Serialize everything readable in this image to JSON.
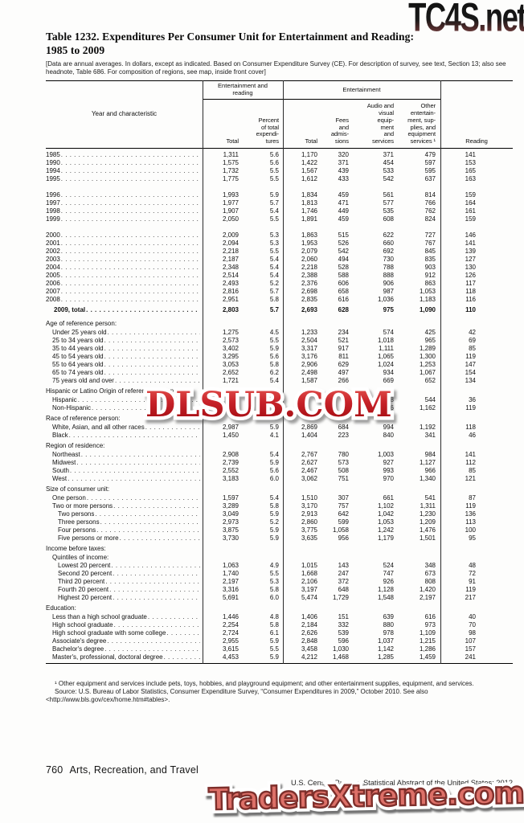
{
  "watermarks": {
    "top": "TC4S.net",
    "middle": "DLSUB.COM",
    "bottom": "TradersXtreme.com"
  },
  "title": {
    "line1": "Table 1232. Expenditures Per Consumer Unit for Entertainment and Reading:",
    "line2": "1985 to 2009"
  },
  "headnote": "[Data are annual averages. In dollars, except as indicated. Based on Consumer Expenditure Survey (CE). For description of survey, see text, Section 13; also see headnote, Table 686. For composition of regions, see map, inside front cover]",
  "table": {
    "header": {
      "stub": "Year and characteristic",
      "group1": "Entertainment and\nreading",
      "group2": "Entertainment",
      "cols": [
        "Total",
        "Percent\nof total\nexpendi-\ntures",
        "Total",
        "Fees\nand\nadmis-\nsions",
        "Audio and\nvisual\nequip-\nment\nand\nservices",
        "Other\nentertain-\nment, sup-\nplies, and\nequipment\nservices ¹",
        "Reading"
      ]
    },
    "rows": [
      {
        "t": "year",
        "label": "1985",
        "v": [
          "1,311",
          "5.6",
          "1,170",
          "320",
          "371",
          "479",
          "141"
        ]
      },
      {
        "t": "year",
        "label": "1990",
        "v": [
          "1,575",
          "5.6",
          "1,422",
          "371",
          "454",
          "597",
          "153"
        ]
      },
      {
        "t": "year",
        "label": "1994",
        "v": [
          "1,732",
          "5.5",
          "1,567",
          "439",
          "533",
          "595",
          "165"
        ]
      },
      {
        "t": "year",
        "label": "1995",
        "v": [
          "1,775",
          "5.5",
          "1,612",
          "433",
          "542",
          "637",
          "163"
        ]
      },
      {
        "t": "gap"
      },
      {
        "t": "year",
        "label": "1996",
        "v": [
          "1,993",
          "5.9",
          "1,834",
          "459",
          "561",
          "814",
          "159"
        ]
      },
      {
        "t": "year",
        "label": "1997",
        "v": [
          "1,977",
          "5.7",
          "1,813",
          "471",
          "577",
          "766",
          "164"
        ]
      },
      {
        "t": "year",
        "label": "1998",
        "v": [
          "1,907",
          "5.4",
          "1,746",
          "449",
          "535",
          "762",
          "161"
        ]
      },
      {
        "t": "year",
        "label": "1999",
        "v": [
          "2,050",
          "5.5",
          "1,891",
          "459",
          "608",
          "824",
          "159"
        ]
      },
      {
        "t": "gap"
      },
      {
        "t": "year",
        "label": "2000",
        "v": [
          "2,009",
          "5.3",
          "1,863",
          "515",
          "622",
          "727",
          "146"
        ]
      },
      {
        "t": "year",
        "label": "2001",
        "v": [
          "2,094",
          "5.3",
          "1,953",
          "526",
          "660",
          "767",
          "141"
        ]
      },
      {
        "t": "year",
        "label": "2002",
        "v": [
          "2,218",
          "5.5",
          "2,079",
          "542",
          "692",
          "845",
          "139"
        ]
      },
      {
        "t": "year",
        "label": "2003",
        "v": [
          "2,187",
          "5.4",
          "2,060",
          "494",
          "730",
          "835",
          "127"
        ]
      },
      {
        "t": "year",
        "label": "2004",
        "v": [
          "2,348",
          "5.4",
          "2,218",
          "528",
          "788",
          "903",
          "130"
        ]
      },
      {
        "t": "year",
        "label": "2005",
        "v": [
          "2,514",
          "5.4",
          "2,388",
          "588",
          "888",
          "912",
          "126"
        ]
      },
      {
        "t": "year",
        "label": "2006",
        "v": [
          "2,493",
          "5.2",
          "2,376",
          "606",
          "906",
          "863",
          "117"
        ]
      },
      {
        "t": "year",
        "label": "2007",
        "v": [
          "2,816",
          "5.7",
          "2,698",
          "658",
          "987",
          "1,053",
          "118"
        ]
      },
      {
        "t": "year",
        "label": "2008",
        "v": [
          "2,951",
          "5.8",
          "2,835",
          "616",
          "1,036",
          "1,183",
          "116"
        ]
      },
      {
        "t": "total",
        "label": "2009, total",
        "v": [
          "2,803",
          "5.7",
          "2,693",
          "628",
          "975",
          "1,090",
          "110"
        ]
      },
      {
        "t": "sechead",
        "label": "Age of reference person:"
      },
      {
        "t": "item",
        "label": "Under 25 years old",
        "v": [
          "1,275",
          "4.5",
          "1,233",
          "234",
          "574",
          "425",
          "42"
        ]
      },
      {
        "t": "item",
        "label": "25 to 34 years old",
        "v": [
          "2,573",
          "5.5",
          "2,504",
          "521",
          "1,018",
          "965",
          "69"
        ]
      },
      {
        "t": "item",
        "label": "35 to 44 years old",
        "v": [
          "3,402",
          "5.9",
          "3,317",
          "917",
          "1,111",
          "1,289",
          "85"
        ]
      },
      {
        "t": "item",
        "label": "45 to 54 years old",
        "v": [
          "3,295",
          "5.6",
          "3,176",
          "811",
          "1,065",
          "1,300",
          "119"
        ]
      },
      {
        "t": "item",
        "label": "55 to 64 years old",
        "v": [
          "3,053",
          "5.8",
          "2,906",
          "629",
          "1,024",
          "1,253",
          "147"
        ]
      },
      {
        "t": "item",
        "label": "65 to 74 years old",
        "v": [
          "2,652",
          "6.2",
          "2,498",
          "497",
          "934",
          "1,067",
          "154"
        ]
      },
      {
        "t": "item",
        "label": "75 years old and over",
        "v": [
          "1,721",
          "5.4",
          "1,587",
          "266",
          "669",
          "652",
          "134"
        ]
      },
      {
        "t": "sechead",
        "label": "Hispanic or Latino Origin of reference person:"
      },
      {
        "t": "item",
        "label": "Hispanic",
        "v": [
          "",
          "",
          "",
          "",
          "818",
          "544",
          "36"
        ]
      },
      {
        "t": "item",
        "label": "Non-Hispanic",
        "v": [
          "",
          "",
          "",
          "",
          "996",
          "1,162",
          "119"
        ]
      },
      {
        "t": "sechead",
        "label": "Race of reference person:"
      },
      {
        "t": "item",
        "label": "White, Asian, and all other races",
        "v": [
          "2,987",
          "5.9",
          "2,869",
          "684",
          "994",
          "1,192",
          "118"
        ]
      },
      {
        "t": "item",
        "label": "Black",
        "v": [
          "1,450",
          "4.1",
          "1,404",
          "223",
          "840",
          "341",
          "46"
        ]
      },
      {
        "t": "sechead",
        "label": "Region of residence:"
      },
      {
        "t": "item",
        "label": "Northeast",
        "v": [
          "2,908",
          "5.4",
          "2,767",
          "780",
          "1,003",
          "984",
          "141"
        ]
      },
      {
        "t": "item",
        "label": "Midwest",
        "v": [
          "2,739",
          "5.9",
          "2,627",
          "573",
          "927",
          "1,127",
          "112"
        ]
      },
      {
        "t": "item",
        "label": "South",
        "v": [
          "2,552",
          "5.6",
          "2,467",
          "508",
          "993",
          "966",
          "85"
        ]
      },
      {
        "t": "item",
        "label": "West",
        "v": [
          "3,183",
          "6.0",
          "3,062",
          "751",
          "970",
          "1,340",
          "121"
        ]
      },
      {
        "t": "sechead",
        "label": "Size of consumer unit:"
      },
      {
        "t": "item",
        "label": "One person",
        "v": [
          "1,597",
          "5.4",
          "1,510",
          "307",
          "661",
          "541",
          "87"
        ]
      },
      {
        "t": "item",
        "label": "Two or more persons",
        "v": [
          "3,289",
          "5.8",
          "3,170",
          "757",
          "1,102",
          "1,311",
          "119"
        ]
      },
      {
        "t": "item2",
        "label": "Two persons",
        "v": [
          "3,049",
          "5.9",
          "2,913",
          "642",
          "1,042",
          "1,230",
          "136"
        ]
      },
      {
        "t": "item2",
        "label": "Three persons",
        "v": [
          "2,973",
          "5.2",
          "2,860",
          "599",
          "1,053",
          "1,209",
          "113"
        ]
      },
      {
        "t": "item2",
        "label": "Four persons",
        "v": [
          "3,875",
          "5.9",
          "3,775",
          "1,058",
          "1,242",
          "1,476",
          "100"
        ]
      },
      {
        "t": "item2",
        "label": "Five persons or more",
        "v": [
          "3,730",
          "5.9",
          "3,635",
          "956",
          "1,179",
          "1,501",
          "95"
        ]
      },
      {
        "t": "sechead",
        "label": "Income before taxes:"
      },
      {
        "t": "subhead",
        "label": "Quintiles of income:"
      },
      {
        "t": "item2",
        "label": "Lowest 20 percent",
        "v": [
          "1,063",
          "4.9",
          "1,015",
          "143",
          "524",
          "348",
          "48"
        ]
      },
      {
        "t": "item2",
        "label": "Second 20 percent",
        "v": [
          "1,740",
          "5.5",
          "1,668",
          "247",
          "747",
          "673",
          "72"
        ]
      },
      {
        "t": "item2",
        "label": "Third 20 percent",
        "v": [
          "2,197",
          "5.3",
          "2,106",
          "372",
          "926",
          "808",
          "91"
        ]
      },
      {
        "t": "item2",
        "label": "Fourth 20 percent",
        "v": [
          "3,316",
          "5.8",
          "3,197",
          "648",
          "1,128",
          "1,420",
          "119"
        ]
      },
      {
        "t": "item2",
        "label": "Highest 20 percent",
        "v": [
          "5,691",
          "6.0",
          "5,474",
          "1,729",
          "1,548",
          "2,197",
          "217"
        ]
      },
      {
        "t": "sechead",
        "label": "Education:"
      },
      {
        "t": "item",
        "label": "Less than a high school graduate",
        "v": [
          "1,446",
          "4.8",
          "1,406",
          "151",
          "639",
          "616",
          "40"
        ]
      },
      {
        "t": "item",
        "label": "High school graduate",
        "v": [
          "2,254",
          "5.8",
          "2,184",
          "332",
          "880",
          "973",
          "70"
        ]
      },
      {
        "t": "item",
        "label": "High school graduate with some college",
        "v": [
          "2,724",
          "6.1",
          "2,626",
          "539",
          "978",
          "1,109",
          "98"
        ]
      },
      {
        "t": "item",
        "label": "Associate's degree",
        "v": [
          "2,955",
          "5.9",
          "2,848",
          "596",
          "1,037",
          "1,215",
          "107"
        ]
      },
      {
        "t": "item",
        "label": "Bachelor's degree",
        "v": [
          "3,615",
          "5.5",
          "3,458",
          "1,030",
          "1,142",
          "1,286",
          "157"
        ]
      },
      {
        "t": "item",
        "label": "Master's, professional, doctoral degree",
        "v": [
          "4,453",
          "5.9",
          "4,212",
          "1,468",
          "1,285",
          "1,459",
          "241"
        ]
      }
    ]
  },
  "footnotes": {
    "note1": "¹ Other equipment and services include pets, toys, hobbies, and playground equipment; and other entertainment supplies, equipment, and services.",
    "source": "Source: U.S. Bureau of Labor Statistics, Consumer Expenditure Survey, “Consumer Expenditures in 2009,” October 2010. See also <http://www.bls.gov/cex/home.htm#tables>."
  },
  "footer": {
    "page": "760",
    "section": "Arts, Recreation, and Travel",
    "publication": "U.S. Census Bureau, Statistical Abstract of the United States: 2012"
  },
  "colors": {
    "watermark_red": "#c8232a",
    "watermark_salmon": "#dd7068",
    "watermark_dark": "#121212",
    "rule_black": "#000000"
  }
}
